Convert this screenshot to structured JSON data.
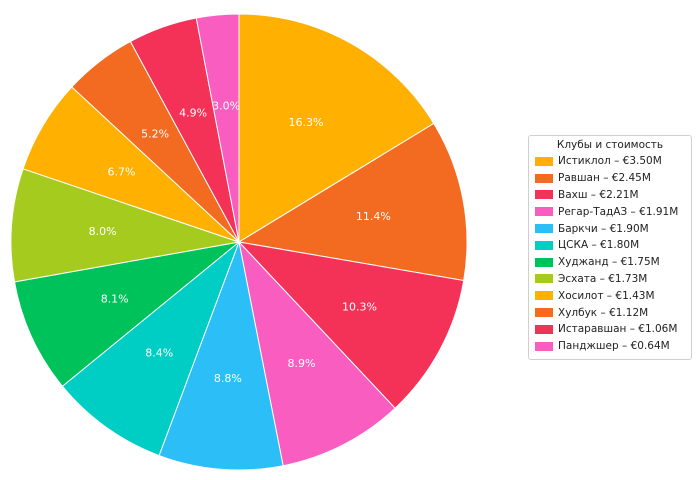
{
  "chart_data": {
    "type": "pie",
    "legend_title": "Клубы и стоимость",
    "legend_placement": "right",
    "start": "top",
    "direction": "clockwise",
    "slices": [
      {
        "label": "Истиклол – €3.50M",
        "value": 16.3,
        "pct_label": "16.3%",
        "color": "#FFB000"
      },
      {
        "label": "Равшан – €2.45M",
        "value": 11.4,
        "pct_label": "11.4%",
        "color": "#F26B21"
      },
      {
        "label": "Вахш – €2.21M",
        "value": 10.3,
        "pct_label": "10.3%",
        "color": "#F43157"
      },
      {
        "label": "Регар-ТадАЗ – €1.91M",
        "value": 8.9,
        "pct_label": "8.9%",
        "color": "#F85DBF"
      },
      {
        "label": "Баркчи – €1.90M",
        "value": 8.8,
        "pct_label": "8.8%",
        "color": "#2CBEF7"
      },
      {
        "label": "ЦСКА – €1.80M",
        "value": 8.4,
        "pct_label": "8.4%",
        "color": "#00CEC5"
      },
      {
        "label": "Худжанд – €1.75M",
        "value": 8.1,
        "pct_label": "8.1%",
        "color": "#00C25A"
      },
      {
        "label": "Эсхата – €1.73M",
        "value": 8.0,
        "pct_label": "8.0%",
        "color": "#A5CB1E"
      },
      {
        "label": "Хосилот – €1.43M",
        "value": 6.7,
        "pct_label": "6.7%",
        "color": "#FFB000"
      },
      {
        "label": "Хулбук – €1.12M",
        "value": 5.2,
        "pct_label": "5.2%",
        "color": "#F26B21"
      },
      {
        "label": "Истаравшан – €1.06M",
        "value": 4.9,
        "pct_label": "4.9%",
        "color": "#F43157"
      },
      {
        "label": "Панджшер – €0.64M",
        "value": 3.0,
        "pct_label": "3.0%",
        "color": "#F85DBF"
      }
    ]
  }
}
